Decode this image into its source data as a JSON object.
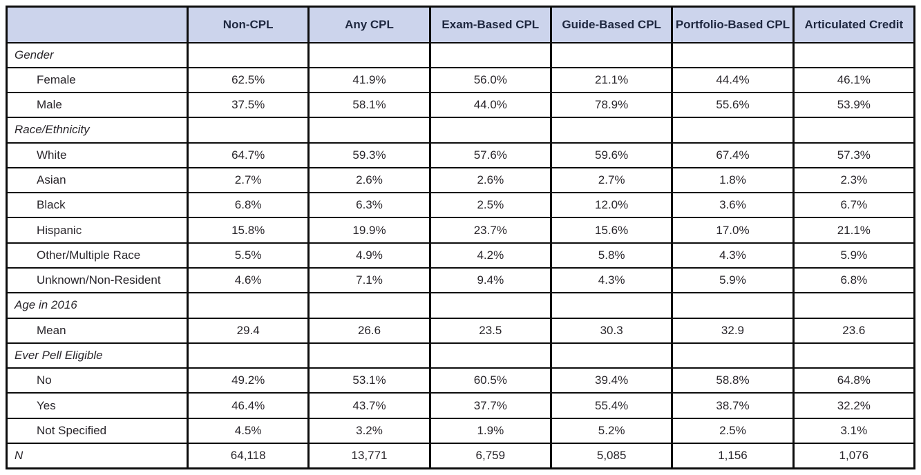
{
  "colors": {
    "header_bg": "#ccd4ec",
    "header_text": "#1f2840",
    "body_text": "#29262b",
    "border": "#0c0c0c"
  },
  "table": {
    "header": {
      "columns": [
        "Non-CPL",
        "Any CPL",
        "Exam-Based CPL",
        "Guide-Based CPL",
        "Portfolio-Based CPL",
        "Articulated Credit"
      ]
    },
    "rows": [
      {
        "type": "section",
        "label": "Gender",
        "values": [
          "",
          "",
          "",
          "",
          "",
          ""
        ]
      },
      {
        "type": "data",
        "label": "Female",
        "values": [
          "62.5%",
          "41.9%",
          "56.0%",
          "21.1%",
          "44.4%",
          "46.1%"
        ]
      },
      {
        "type": "data",
        "label": "Male",
        "values": [
          "37.5%",
          "58.1%",
          "44.0%",
          "78.9%",
          "55.6%",
          "53.9%"
        ]
      },
      {
        "type": "section",
        "label": "Race/Ethnicity",
        "values": [
          "",
          "",
          "",
          "",
          "",
          ""
        ]
      },
      {
        "type": "data",
        "label": "White",
        "values": [
          "64.7%",
          "59.3%",
          "57.6%",
          "59.6%",
          "67.4%",
          "57.3%"
        ]
      },
      {
        "type": "data",
        "label": "Asian",
        "values": [
          "2.7%",
          "2.6%",
          "2.6%",
          "2.7%",
          "1.8%",
          "2.3%"
        ]
      },
      {
        "type": "data",
        "label": "Black",
        "values": [
          "6.8%",
          "6.3%",
          "2.5%",
          "12.0%",
          "3.6%",
          "6.7%"
        ]
      },
      {
        "type": "data",
        "label": "Hispanic",
        "values": [
          "15.8%",
          "19.9%",
          "23.7%",
          "15.6%",
          "17.0%",
          "21.1%"
        ]
      },
      {
        "type": "data",
        "label": "Other/Multiple Race",
        "values": [
          "5.5%",
          "4.9%",
          "4.2%",
          "5.8%",
          "4.3%",
          "5.9%"
        ]
      },
      {
        "type": "data",
        "label": "Unknown/Non-Resident",
        "values": [
          "4.6%",
          "7.1%",
          "9.4%",
          "4.3%",
          "5.9%",
          "6.8%"
        ]
      },
      {
        "type": "section",
        "label": "Age in 2016",
        "values": [
          "",
          "",
          "",
          "",
          "",
          ""
        ]
      },
      {
        "type": "data",
        "label": "Mean",
        "values": [
          "29.4",
          "26.6",
          "23.5",
          "30.3",
          "32.9",
          "23.6"
        ]
      },
      {
        "type": "section",
        "label": "Ever Pell Eligible",
        "values": [
          "",
          "",
          "",
          "",
          "",
          ""
        ]
      },
      {
        "type": "data",
        "label": "No",
        "values": [
          "49.2%",
          "53.1%",
          "60.5%",
          "39.4%",
          "58.8%",
          "64.8%"
        ]
      },
      {
        "type": "data",
        "label": "Yes",
        "values": [
          "46.4%",
          "43.7%",
          "37.7%",
          "55.4%",
          "38.7%",
          "32.2%"
        ]
      },
      {
        "type": "data",
        "label": "Not Specified",
        "values": [
          "4.5%",
          "3.2%",
          "1.9%",
          "5.2%",
          "2.5%",
          "3.1%"
        ]
      },
      {
        "type": "n",
        "label": "N",
        "values": [
          "64,118",
          "13,771",
          "6,759",
          "5,085",
          "1,156",
          "1,076"
        ]
      }
    ]
  }
}
